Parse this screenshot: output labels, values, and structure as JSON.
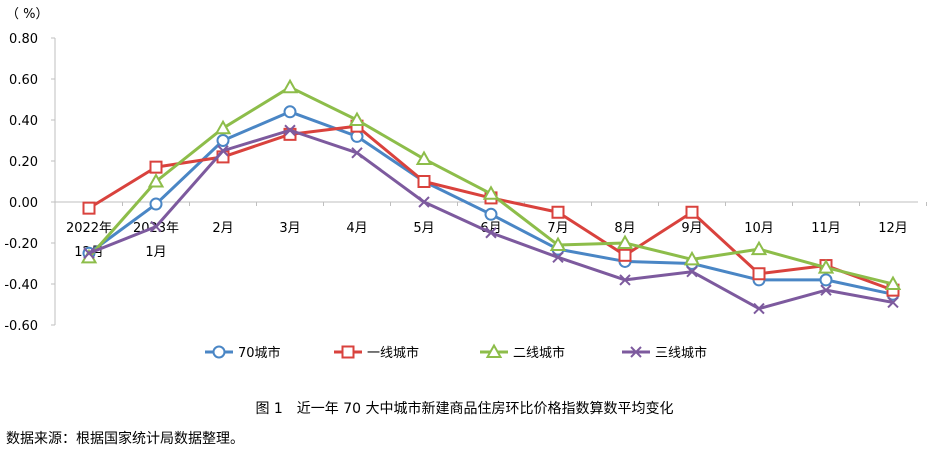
{
  "caption": "图 1　近一年 70 大中城市新建商品住房环比价格指数算数平均变化",
  "source": "数据来源：根据国家统计局数据整理。",
  "chart_data": {
    "type": "line",
    "title": "",
    "ylabel": "（ %）",
    "xlabel": "",
    "ylim": [
      -0.6,
      0.8
    ],
    "yticks": [
      0.8,
      0.6,
      0.4,
      0.2,
      0.0,
      -0.2,
      -0.4,
      -0.6
    ],
    "ytick_labels": [
      "0.80",
      "0.60",
      "0.40",
      "0.20",
      "0.00",
      "-0.20",
      "-0.40",
      "-0.60"
    ],
    "categories": [
      [
        "2022年",
        "12月"
      ],
      [
        "2023年",
        "1月"
      ],
      [
        "2月"
      ],
      [
        "3月"
      ],
      [
        "4月"
      ],
      [
        "5月"
      ],
      [
        "6月"
      ],
      [
        "7月"
      ],
      [
        "8月"
      ],
      [
        "9月"
      ],
      [
        "10月"
      ],
      [
        "11月"
      ],
      [
        "12月"
      ]
    ],
    "grid": false,
    "legend_position": "bottom",
    "series": [
      {
        "name": "70城市",
        "color": "#4a86c5",
        "marker": "circle",
        "values": [
          -0.25,
          -0.01,
          0.3,
          0.44,
          0.32,
          0.1,
          -0.06,
          -0.23,
          -0.29,
          -0.3,
          -0.38,
          -0.38,
          -0.45
        ]
      },
      {
        "name": "一线城市",
        "color": "#d9423d",
        "marker": "square",
        "values": [
          -0.03,
          0.17,
          0.22,
          0.33,
          0.37,
          0.1,
          0.02,
          -0.05,
          -0.26,
          -0.05,
          -0.35,
          -0.31,
          -0.43
        ]
      },
      {
        "name": "二线城市",
        "color": "#8dbd4a",
        "marker": "triangle",
        "values": [
          -0.27,
          0.1,
          0.36,
          0.56,
          0.4,
          0.21,
          0.04,
          -0.21,
          -0.2,
          -0.28,
          -0.23,
          -0.32,
          -0.4
        ]
      },
      {
        "name": "三线城市",
        "color": "#7d5a9e",
        "marker": "x",
        "values": [
          -0.25,
          -0.12,
          0.25,
          0.35,
          0.24,
          0.0,
          -0.15,
          -0.27,
          -0.38,
          -0.34,
          -0.52,
          -0.43,
          -0.49
        ]
      }
    ]
  }
}
